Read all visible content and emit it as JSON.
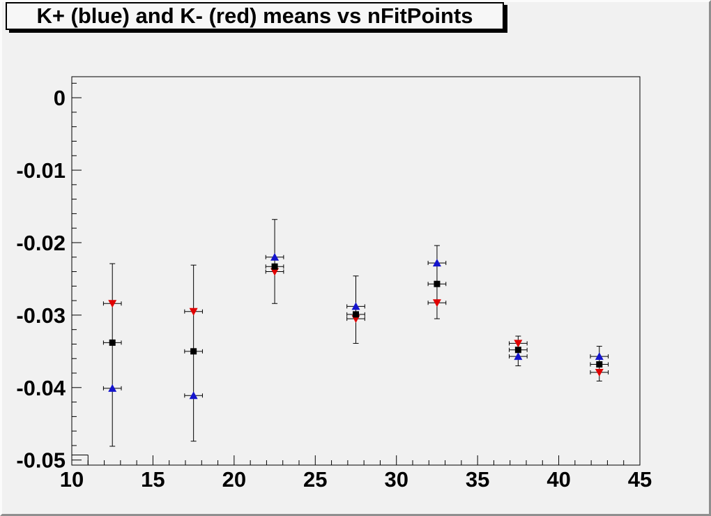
{
  "window": {
    "bg_color": "#f1f1f1",
    "bevel_light": "#fbfbfb",
    "bevel_dark": "#8f8f8f"
  },
  "title": {
    "text": "K+ (blue) and K- (red) means vs nFitPoints",
    "box_fill": "#f7f7f7",
    "border_color": "#000000",
    "shadow_color": "#000000"
  },
  "chart_data": {
    "type": "scatter",
    "title": "K+ (blue) and K- (red) means vs nFitPoints",
    "xlabel": "",
    "ylabel": "",
    "xlim": [
      10,
      45
    ],
    "ylim": [
      -0.0507,
      0.0029
    ],
    "grid": false,
    "legend": "none (colors named in title)",
    "x_major_ticks": [
      10,
      15,
      20,
      25,
      30,
      35,
      40,
      45
    ],
    "x_tick_labels": [
      "10",
      "15",
      "20",
      "25",
      "30",
      "35",
      "40",
      "45"
    ],
    "x_minor_step": 1,
    "y_major_ticks": [
      0,
      -0.01,
      -0.02,
      -0.03,
      -0.04,
      -0.05
    ],
    "y_tick_labels": [
      "0",
      "-0.01",
      "-0.02",
      "-0.03",
      "-0.04",
      "-0.05"
    ],
    "y_minor_step": 0.002,
    "categories_x": [
      12.5,
      17.5,
      22.5,
      27.5,
      32.5,
      37.5,
      42.5
    ],
    "series": [
      {
        "name": "K+ (blue triangles)",
        "marker": "triangle-up",
        "color": "#1414cc",
        "y": [
          -0.0401,
          -0.0411,
          -0.022,
          -0.0288,
          -0.0228,
          -0.0357,
          -0.0357
        ]
      },
      {
        "name": "K- (red triangles)",
        "marker": "triangle-down",
        "color": "#e00000",
        "y": [
          -0.0284,
          -0.0295,
          -0.024,
          -0.0305,
          -0.0283,
          -0.0339,
          -0.0379
        ]
      },
      {
        "name": "black squares",
        "marker": "square",
        "color": "#000000",
        "y": [
          -0.0338,
          -0.035,
          -0.0233,
          -0.0299,
          -0.0257,
          -0.0348,
          -0.0368
        ]
      }
    ],
    "error_bars": [
      {
        "x": 12.5,
        "y_top": -0.0229,
        "y_bottom": -0.0481
      },
      {
        "x": 17.5,
        "y_top": -0.0231,
        "y_bottom": -0.0474
      },
      {
        "x": 22.5,
        "y_top": -0.0168,
        "y_bottom": -0.0284
      },
      {
        "x": 27.5,
        "y_top": -0.0246,
        "y_bottom": -0.0339
      },
      {
        "x": 32.5,
        "y_top": -0.0204,
        "y_bottom": -0.0305
      },
      {
        "x": 37.5,
        "y_top": -0.0329,
        "y_bottom": -0.037
      },
      {
        "x": 42.5,
        "y_top": -0.0343,
        "y_bottom": -0.0391
      }
    ],
    "x_error_halfwidth": 0.55,
    "artifact_step": {
      "x0": 10,
      "x1": 11,
      "y": -0.0493
    },
    "axis_color": "#000000"
  }
}
